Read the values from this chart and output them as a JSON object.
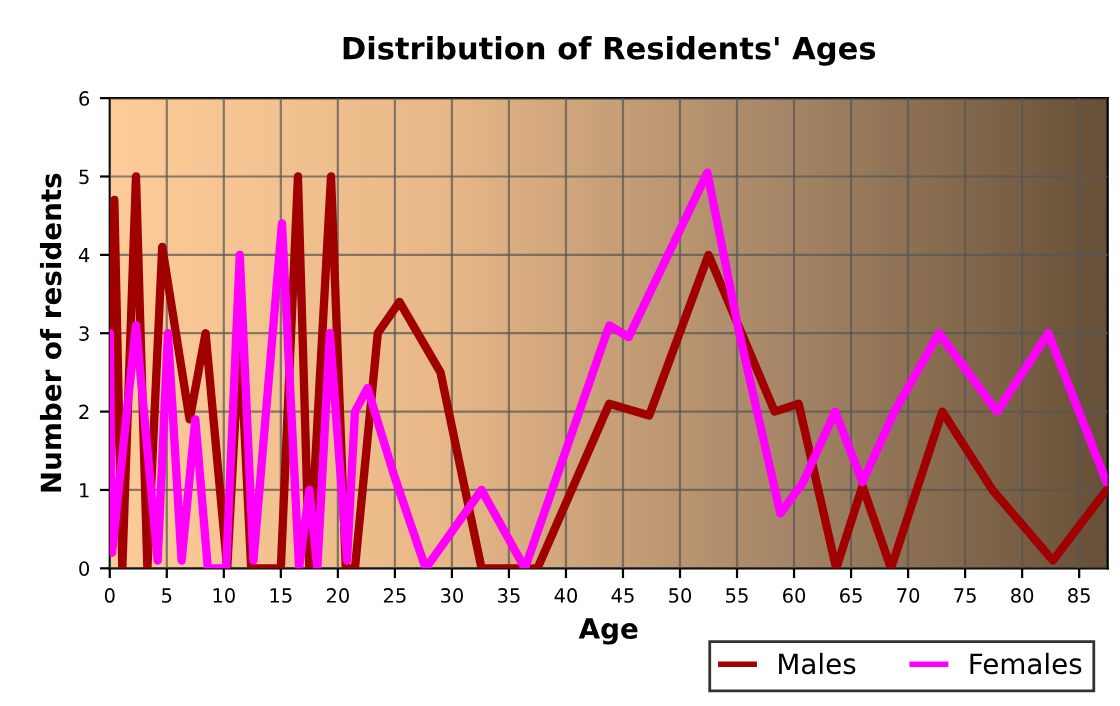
{
  "chart_data": {
    "type": "line",
    "title": "Distribution of Residents' Ages",
    "xlabel": "Age",
    "ylabel": "Number of residents",
    "xlim": [
      0,
      87.5
    ],
    "xticks": [
      0,
      5,
      10,
      15,
      20,
      25,
      30,
      35,
      40,
      45,
      50,
      55,
      60,
      65,
      70,
      75,
      80,
      85
    ],
    "ylim": [
      0,
      6
    ],
    "yticks": [
      0,
      1,
      2,
      3,
      4,
      5,
      6
    ],
    "grid": true,
    "legend": "bottom right",
    "line_style": "solid",
    "marker": "none",
    "series": [
      {
        "name": "Males",
        "color": "#a00000",
        "x": [
          0,
          0.4,
          1.1,
          2.3,
          3.3,
          4.6,
          7,
          8.4,
          10.3,
          11.4,
          12.4,
          15,
          16.5,
          17.5,
          19.4,
          20.7,
          21.5,
          23.5,
          25.4,
          29,
          32.6,
          37.5,
          43.8,
          47.3,
          52.5,
          58.3,
          60.4,
          63.7,
          66,
          68.5,
          73,
          77.4,
          82.7,
          87.4
        ],
        "values": [
          0.2,
          4.7,
          0,
          5,
          0,
          4.1,
          1.9,
          3,
          0,
          3,
          0,
          0,
          5,
          0,
          5,
          0,
          0,
          3,
          3.4,
          2.5,
          0,
          0,
          2.1,
          1.95,
          4,
          2,
          2.1,
          0,
          1.05,
          0,
          2,
          1,
          0.1,
          1
        ]
      },
      {
        "name": "Females",
        "color": "#ff00ff",
        "x": [
          0,
          0.2,
          2.3,
          4.2,
          5.1,
          6.3,
          7.5,
          8.6,
          10.2,
          11.4,
          12.6,
          15.1,
          16.6,
          17.5,
          18.2,
          19.3,
          20.8,
          21.5,
          22.6,
          24.9,
          27.7,
          32.6,
          36.4,
          43.8,
          45.5,
          52.4,
          55.2,
          58.8,
          60.8,
          63.6,
          66,
          68.8,
          72.7,
          77.8,
          82.3,
          87.4
        ],
        "values": [
          3,
          0.2,
          3.1,
          0.1,
          3,
          0.1,
          1.9,
          0,
          0,
          4,
          0.1,
          4.4,
          0,
          1,
          0,
          3,
          0.1,
          2,
          2.3,
          1.2,
          0,
          1,
          0,
          3.1,
          2.95,
          5.05,
          3,
          0.7,
          1.1,
          2,
          1.1,
          2,
          3,
          2,
          3,
          1.1
        ]
      }
    ]
  }
}
